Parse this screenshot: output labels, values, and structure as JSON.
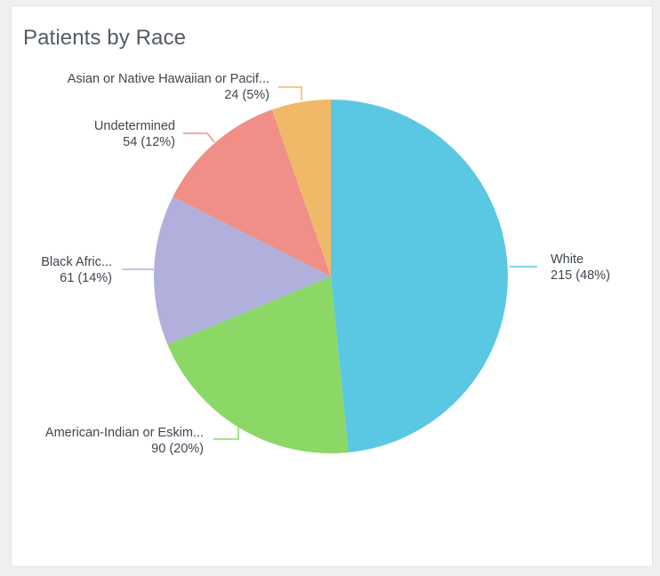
{
  "card": {
    "title": "Patients by Race"
  },
  "chart_data": {
    "type": "pie",
    "title": "Patients by Race",
    "categories": [
      "White",
      "American-Indian or Eskimo",
      "Black African American",
      "Undetermined",
      "Asian or Native Hawaiian or Pacific Islander"
    ],
    "displayed_labels": [
      "White",
      "American-Indian or Eskim...",
      "Black Afric...",
      "Undetermined",
      "Asian or Native Hawaiian or Pacif..."
    ],
    "values": [
      215,
      90,
      61,
      54,
      24
    ],
    "value_labels": [
      "215 (48%)",
      "90 (20%)",
      "61 (14%)",
      "54 (12%)",
      "24 (5%)"
    ],
    "colors": [
      "#5bc8e3",
      "#8bd867",
      "#b1b0dc",
      "#ef8f87",
      "#f0b967"
    ],
    "start_angle_deg": 0,
    "direction": "clockwise",
    "legend": "none"
  }
}
